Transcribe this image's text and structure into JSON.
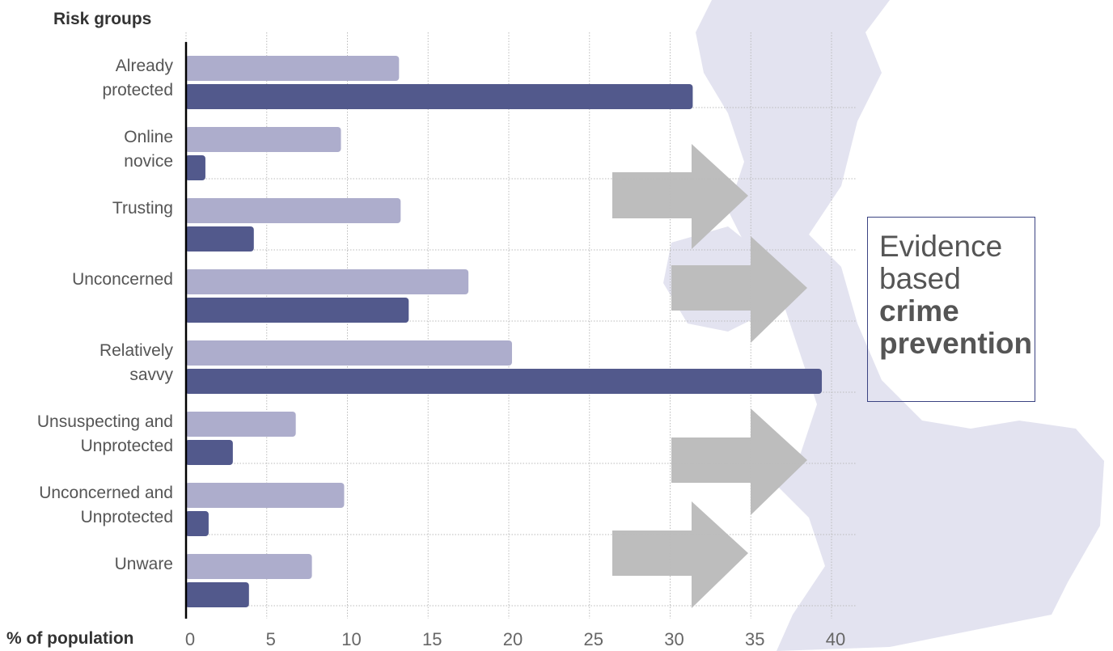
{
  "chart_data": {
    "type": "bar",
    "orientation": "horizontal",
    "y_axis_title": "Risk groups",
    "x_axis_title": "% of population",
    "categories": [
      "Already\nprotected",
      "Online\nnovice",
      "Trusting",
      "Unconcerned",
      "Relatively\nsavvy",
      "Unsuspecting and\nUnprotected",
      "Unconcerned and\nUnprotected",
      "Unware"
    ],
    "series": [
      {
        "color": "#adadcc",
        "values": [
          13.2,
          9.6,
          13.3,
          17.5,
          20.2,
          6.8,
          9.8,
          7.8
        ]
      },
      {
        "color": "#52598c",
        "values": [
          31.4,
          1.2,
          4.2,
          13.8,
          39.4,
          2.9,
          1.4,
          3.9
        ]
      }
    ],
    "xlim": [
      0,
      40
    ],
    "xticks": [
      0,
      5,
      10,
      15,
      20,
      25,
      30,
      35,
      40
    ],
    "grid": true,
    "annotation": [
      "Evidence based",
      "crime prevention"
    ]
  }
}
